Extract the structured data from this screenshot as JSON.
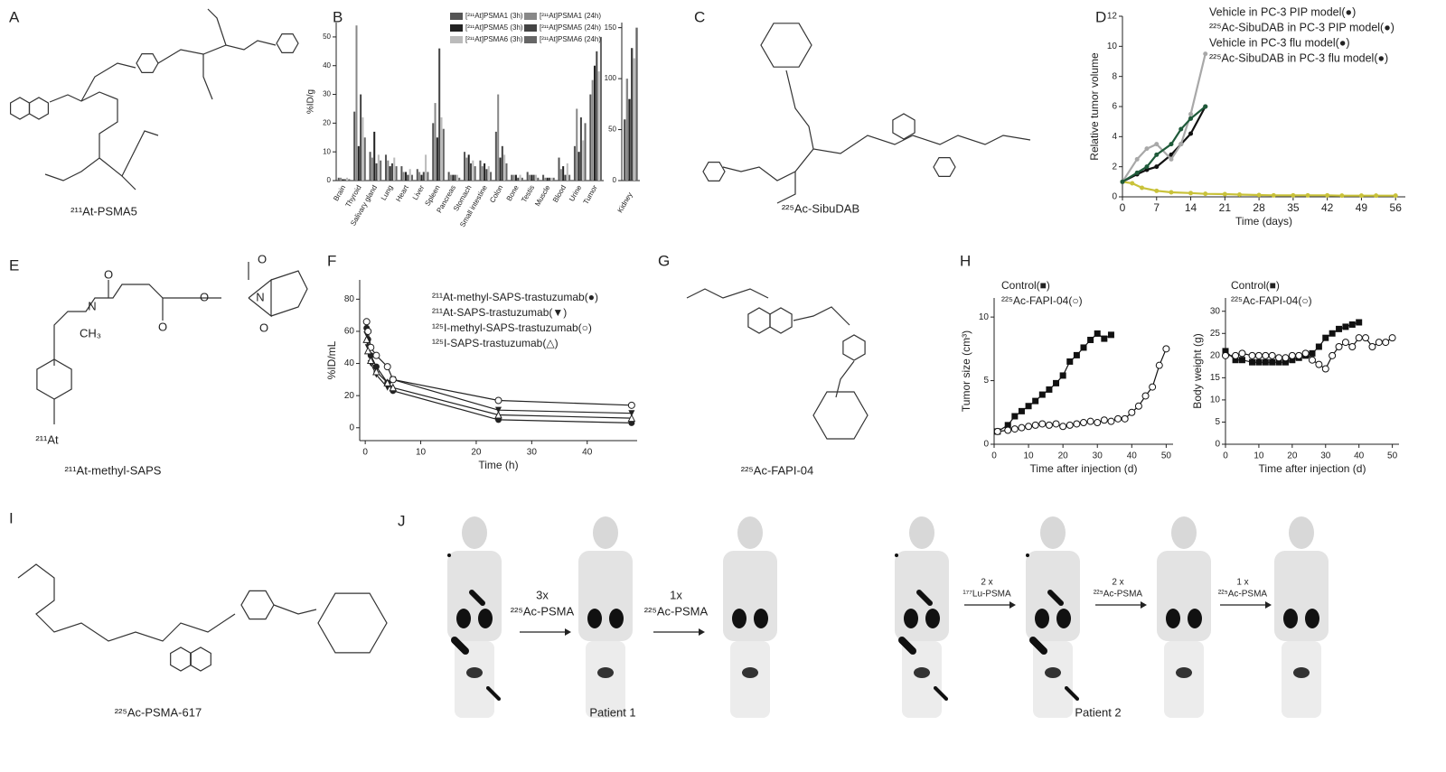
{
  "figure": {
    "panel_labels": [
      "A",
      "B",
      "C",
      "D",
      "E",
      "F",
      "G",
      "H",
      "I",
      "J"
    ],
    "captions": {
      "A": "²¹¹At-PSMA5",
      "C": "²²⁵Ac-SibuDAB",
      "E": "²¹¹At-methyl-SAPS",
      "G": "²²⁵Ac-FAPI-04",
      "I": "²²⁵Ac-PSMA-617"
    },
    "structure_E_labels": [
      "O",
      "N",
      "CH₃",
      "O",
      "O",
      "N",
      "O",
      "O",
      "²¹¹At"
    ],
    "imaging": {
      "arrows": [
        "3x",
        "²²⁵Ac-PSMA",
        "1x",
        "²²⁵Ac-PSMA",
        "2 x",
        "¹⁷⁷Lu-PSMA",
        "2 x",
        "²²⁵Ac-PSMA",
        "1 x",
        "²²⁵Ac-PSMA"
      ],
      "patients": [
        "Patient 1",
        "Patient 2"
      ]
    }
  },
  "chart_data": [
    {
      "type": "bar",
      "ylabel": "%ID/g",
      "categories": [
        "Brain",
        "Thyroid",
        "Salivary gland",
        "Lung",
        "Heart",
        "Liver",
        "Spleen",
        "Pancreas",
        "Stomach",
        "Small intestine",
        "Colon",
        "Bone",
        "Testis",
        "Muscle",
        "Blood",
        "Urine",
        "Tumor"
      ],
      "ylim": [
        0,
        55
      ],
      "yticks": [
        0,
        10,
        20,
        30,
        40,
        50
      ],
      "series": [
        {
          "name": "[²¹¹At]PSMA1 (3h)",
          "color": "#555555",
          "values": [
            1,
            24,
            10,
            9,
            5,
            4,
            20,
            3,
            10,
            7,
            17,
            2,
            3,
            2,
            8,
            12,
            30
          ]
        },
        {
          "name": "[²¹¹At]PSMA1 (24h)",
          "color": "#888888",
          "values": [
            1,
            54,
            8,
            7,
            3,
            3,
            27,
            2,
            8,
            5,
            30,
            2,
            2,
            1,
            4,
            25,
            35
          ]
        },
        {
          "name": "[²¹¹At]PSMA5 (3h)",
          "color": "#222222",
          "values": [
            0.5,
            12,
            17,
            5,
            3,
            2,
            15,
            2,
            9,
            6,
            8,
            2,
            2,
            1,
            5,
            10,
            40
          ]
        },
        {
          "name": "[²¹¹At]PSMA5 (24h)",
          "color": "#444444",
          "values": [
            0.5,
            30,
            6,
            6,
            2,
            3,
            46,
            2,
            6,
            4,
            12,
            1,
            2,
            1,
            2,
            22,
            45
          ]
        },
        {
          "name": "[²¹¹At]PSMA6 (3h)",
          "color": "#bbbbbb",
          "values": [
            1,
            22,
            9,
            8,
            4,
            9,
            22,
            2,
            7,
            5,
            9,
            2,
            2,
            1,
            6,
            14,
            38
          ]
        },
        {
          "name": "[²¹¹At]PSMA6 (24h)",
          "color": "#666666",
          "values": [
            0.5,
            15,
            7,
            5,
            2,
            3,
            18,
            1,
            5,
            3,
            6,
            1,
            1,
            1,
            2,
            20,
            50
          ]
        }
      ]
    },
    {
      "type": "bar",
      "categories": [
        "Kidney"
      ],
      "ylim": [
        0,
        155
      ],
      "yticks": [
        0,
        50,
        100,
        150
      ],
      "series": [
        {
          "color": "#555555",
          "values": [
            60
          ]
        },
        {
          "color": "#888888",
          "values": [
            100
          ]
        },
        {
          "color": "#222222",
          "values": [
            80
          ]
        },
        {
          "color": "#444444",
          "values": [
            130
          ]
        },
        {
          "color": "#bbbbbb",
          "values": [
            120
          ]
        },
        {
          "color": "#666666",
          "values": [
            150
          ]
        }
      ]
    },
    {
      "type": "line",
      "xlabel": "Time (days)",
      "ylabel": "Relative tumor volume",
      "xlim": [
        0,
        58
      ],
      "xticks": [
        0,
        7,
        14,
        21,
        28,
        35,
        42,
        49,
        56
      ],
      "ylim": [
        0,
        12
      ],
      "yticks": [
        0,
        2,
        4,
        6,
        8,
        10,
        12
      ],
      "series": [
        {
          "name": "Vehicle in PC-3 PIP model(●)",
          "color": "#111111",
          "marker": "circle",
          "x": [
            0,
            3,
            5,
            7,
            10,
            12,
            14,
            17
          ],
          "values": [
            1,
            1.5,
            1.8,
            2,
            2.8,
            3.5,
            4.2,
            6
          ]
        },
        {
          "name": "²²⁵Ac-SibuDAB in PC-3 PIP model(●)",
          "color": "#c9c23a",
          "marker": "circle",
          "x": [
            0,
            2,
            4,
            7,
            10,
            14,
            17,
            21,
            24,
            28,
            31,
            35,
            38,
            42,
            45,
            49,
            52,
            56
          ],
          "values": [
            1,
            0.9,
            0.6,
            0.4,
            0.3,
            0.25,
            0.2,
            0.18,
            0.15,
            0.12,
            0.1,
            0.1,
            0.1,
            0.1,
            0.08,
            0.08,
            0.08,
            0.08
          ]
        },
        {
          "name": "Vehicle in PC-3 flu model(●)",
          "color": "#a8a8a8",
          "marker": "circle",
          "x": [
            0,
            3,
            5,
            7,
            10,
            12,
            14,
            17
          ],
          "values": [
            1,
            2.5,
            3.2,
            3.5,
            2.5,
            3.5,
            5.5,
            9.5
          ]
        },
        {
          "name": "²²⁵Ac-SibuDAB in PC-3 flu model(●)",
          "color": "#1f5a3a",
          "marker": "circle",
          "x": [
            0,
            3,
            5,
            7,
            10,
            12,
            14,
            17
          ],
          "values": [
            1,
            1.6,
            2,
            2.8,
            3.5,
            4.5,
            5.2,
            6
          ]
        }
      ]
    },
    {
      "type": "line",
      "xlabel": "Time (h)",
      "ylabel": "%ID/mL",
      "xlim": [
        -1,
        49
      ],
      "xticks": [
        0,
        10,
        20,
        30,
        40
      ],
      "ylim": [
        -8,
        92
      ],
      "yticks": [
        0,
        20,
        40,
        60,
        80
      ],
      "series": [
        {
          "name": "²¹¹At-methyl-SAPS-trastuzumab(●)",
          "color": "#222222",
          "marker": "circle",
          "x": [
            0.25,
            0.5,
            1,
            2,
            4,
            5,
            24,
            48
          ],
          "values": [
            62,
            55,
            45,
            38,
            28,
            23,
            5,
            3
          ]
        },
        {
          "name": "²¹¹At-SAPS-trastuzumab(▼)",
          "color": "#222222",
          "marker": "triangle-down",
          "x": [
            0.25,
            0.5,
            1,
            2,
            4,
            5,
            24,
            48
          ],
          "values": [
            58,
            50,
            40,
            33,
            25,
            30,
            11,
            9
          ]
        },
        {
          "name": "¹²⁵I-methyl-SAPS-trastuzumab(○)",
          "color": "#222222",
          "marker": "circle-open",
          "x": [
            0.25,
            0.5,
            1,
            2,
            4,
            5,
            24,
            48
          ],
          "values": [
            66,
            60,
            50,
            45,
            38,
            30,
            17,
            14
          ]
        },
        {
          "name": "¹²⁵I-SAPS-trastuzumab(△)",
          "color": "#222222",
          "marker": "triangle-up",
          "x": [
            0.25,
            0.5,
            1,
            2,
            4,
            5,
            24,
            48
          ],
          "values": [
            55,
            48,
            42,
            35,
            28,
            25,
            8,
            6
          ]
        }
      ]
    },
    {
      "type": "line",
      "xlabel": "Time after injection (d)",
      "ylabel": "Tumor size (cm³)",
      "xlim": [
        0,
        52
      ],
      "xticks": [
        0,
        10,
        20,
        30,
        40,
        50
      ],
      "ylim": [
        0,
        11.5
      ],
      "yticks": [
        0,
        5,
        10
      ],
      "series": [
        {
          "name": "Control(■)",
          "color": "#111111",
          "marker": "square",
          "x": [
            1,
            4,
            6,
            8,
            10,
            12,
            14,
            16,
            18,
            20,
            22,
            24,
            26,
            28,
            30,
            32,
            34
          ],
          "values": [
            1,
            1.5,
            2.2,
            2.6,
            3,
            3.4,
            3.9,
            4.3,
            4.8,
            5.4,
            6.5,
            7,
            7.6,
            8.2,
            8.7,
            8.3,
            8.6
          ]
        },
        {
          "name": "²²⁵Ac-FAPI-04(○)",
          "color": "#111111",
          "marker": "circle-open",
          "x": [
            1,
            4,
            6,
            8,
            10,
            12,
            14,
            16,
            18,
            20,
            22,
            24,
            26,
            28,
            30,
            32,
            34,
            36,
            38,
            40,
            42,
            44,
            46,
            48,
            50
          ],
          "values": [
            1,
            1.1,
            1.2,
            1.3,
            1.4,
            1.5,
            1.6,
            1.5,
            1.6,
            1.4,
            1.5,
            1.6,
            1.7,
            1.8,
            1.7,
            1.9,
            1.8,
            2,
            2,
            2.5,
            3,
            3.8,
            4.5,
            6.2,
            7.5
          ]
        }
      ]
    },
    {
      "type": "line",
      "xlabel": "Time after injection (d)",
      "ylabel": "Body weight (g)",
      "xlim": [
        0,
        52
      ],
      "xticks": [
        0,
        10,
        20,
        30,
        40,
        50
      ],
      "ylim": [
        0,
        33
      ],
      "yticks": [
        0,
        5,
        10,
        15,
        20,
        25,
        30
      ],
      "series": [
        {
          "name": "Control(■)",
          "color": "#111111",
          "marker": "square",
          "x": [
            0,
            3,
            5,
            8,
            10,
            12,
            14,
            16,
            18,
            20,
            22,
            24,
            26,
            28,
            30,
            32,
            34,
            36,
            38,
            40
          ],
          "values": [
            21,
            19,
            19,
            18.5,
            18.5,
            18.5,
            18.5,
            18.5,
            18.5,
            19,
            19.5,
            20,
            20.5,
            22,
            24,
            25,
            26,
            26.5,
            27,
            27.5
          ]
        },
        {
          "name": "²²⁵Ac-FAPI-04(○)",
          "color": "#111111",
          "marker": "circle-open",
          "x": [
            0,
            3,
            5,
            8,
            10,
            12,
            14,
            16,
            18,
            20,
            22,
            24,
            26,
            28,
            30,
            32,
            34,
            36,
            38,
            40,
            42,
            44,
            46,
            48,
            50
          ],
          "values": [
            20,
            20,
            20.5,
            20,
            20,
            20,
            20,
            19.5,
            19.5,
            20,
            20,
            20.5,
            19,
            18,
            17,
            20,
            22,
            23,
            22,
            24,
            24,
            22,
            23,
            23,
            24
          ]
        }
      ]
    }
  ]
}
